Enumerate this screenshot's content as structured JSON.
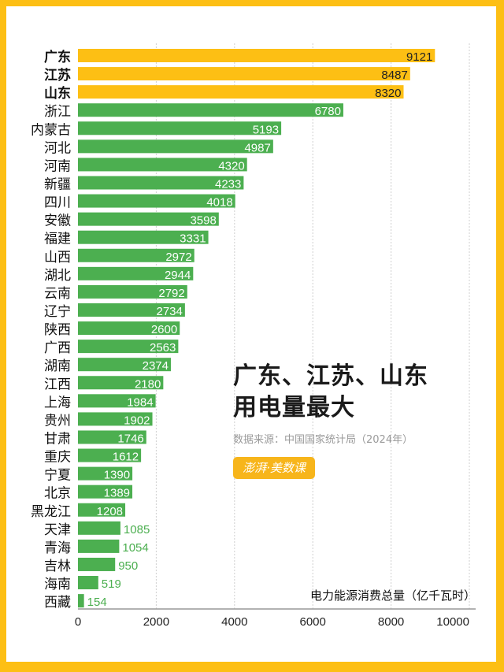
{
  "chart_data": {
    "type": "bar",
    "orientation": "horizontal",
    "title": "广东、江苏、山东用电量最大",
    "title_lines": [
      "广东、江苏、山东",
      "用电量最大"
    ],
    "source": "数据来源：中国国家统计局（2024年）",
    "xlabel": "电力能源消费总量（亿千瓦时）",
    "xlim": [
      0,
      10000
    ],
    "xticks": [
      0,
      2000,
      4000,
      6000,
      8000,
      10000
    ],
    "grid": true,
    "categories": [
      "广东",
      "江苏",
      "山东",
      "浙江",
      "内蒙古",
      "河北",
      "河南",
      "新疆",
      "四川",
      "安徽",
      "福建",
      "山西",
      "湖北",
      "云南",
      "辽宁",
      "陕西",
      "广西",
      "湖南",
      "江西",
      "上海",
      "贵州",
      "甘肃",
      "重庆",
      "宁夏",
      "北京",
      "黑龙江",
      "天津",
      "青海",
      "吉林",
      "海南",
      "西藏"
    ],
    "values": [
      9121,
      8487,
      8320,
      6780,
      5193,
      4987,
      4320,
      4233,
      4018,
      3598,
      3331,
      2972,
      2944,
      2792,
      2734,
      2600,
      2563,
      2374,
      2180,
      1984,
      1902,
      1746,
      1612,
      1390,
      1389,
      1208,
      1085,
      1054,
      950,
      519,
      154
    ],
    "highlight_count": 3,
    "colors": {
      "highlight": "#FDBF14",
      "bar": "#4CAF50",
      "frame": "#FDBF14"
    }
  },
  "logo": {
    "text": "澎湃·美数课"
  }
}
